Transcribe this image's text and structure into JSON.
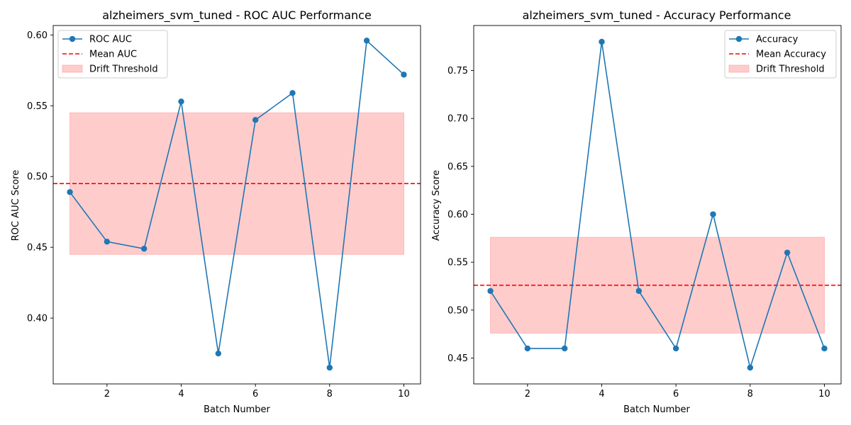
{
  "chart_data": [
    {
      "type": "line",
      "title": "alzheimers_svm_tuned - ROC AUC Performance",
      "xlabel": "Batch Number",
      "ylabel": "ROC AUC Score",
      "xlim": [
        0.55,
        10.45
      ],
      "ylim": [
        0.3535,
        0.6067
      ],
      "xticks": [
        2,
        4,
        6,
        8,
        10
      ],
      "xtick_labels": [
        "2",
        "4",
        "6",
        "8",
        "10"
      ],
      "yticks": [
        0.4,
        0.45,
        0.5,
        0.55,
        0.6
      ],
      "ytick_labels": [
        "0.40",
        "0.45",
        "0.50",
        "0.55",
        "0.60"
      ],
      "grid": false,
      "legend_position": "upper-left",
      "x": [
        1,
        2,
        3,
        4,
        5,
        6,
        7,
        8,
        9,
        10
      ],
      "series": [
        {
          "name": "ROC AUC",
          "values": [
            0.489,
            0.454,
            0.449,
            0.553,
            0.375,
            0.54,
            0.559,
            0.365,
            0.596,
            0.572
          ],
          "color": "#1f77b4"
        }
      ],
      "mean_line": {
        "name": "Mean AUC",
        "value": 0.495,
        "color": "#ff0000"
      },
      "threshold_band": {
        "name": "Drift Threshold",
        "x_range": [
          1,
          10
        ],
        "y_range": [
          0.445,
          0.545
        ],
        "color": "#ff9999"
      }
    },
    {
      "type": "line",
      "title": "alzheimers_svm_tuned - Accuracy Performance",
      "xlabel": "Batch Number",
      "ylabel": "Accuracy Score",
      "xlim": [
        0.55,
        10.45
      ],
      "ylim": [
        0.423,
        0.797
      ],
      "xticks": [
        2,
        4,
        6,
        8,
        10
      ],
      "xtick_labels": [
        "2",
        "4",
        "6",
        "8",
        "10"
      ],
      "yticks": [
        0.45,
        0.5,
        0.55,
        0.6,
        0.65,
        0.7,
        0.75
      ],
      "ytick_labels": [
        "0.45",
        "0.50",
        "0.55",
        "0.60",
        "0.65",
        "0.70",
        "0.75"
      ],
      "grid": false,
      "legend_position": "upper-right",
      "x": [
        1,
        2,
        3,
        4,
        5,
        6,
        7,
        8,
        9,
        10
      ],
      "series": [
        {
          "name": "Accuracy",
          "values": [
            0.52,
            0.46,
            0.46,
            0.78,
            0.52,
            0.46,
            0.6,
            0.44,
            0.56,
            0.46
          ],
          "color": "#1f77b4"
        }
      ],
      "mean_line": {
        "name": "Mean Accuracy",
        "value": 0.526,
        "color": "#ff0000"
      },
      "threshold_band": {
        "name": "Drift Threshold",
        "x_range": [
          1,
          10
        ],
        "y_range": [
          0.476,
          0.576
        ],
        "color": "#ff9999"
      }
    }
  ]
}
